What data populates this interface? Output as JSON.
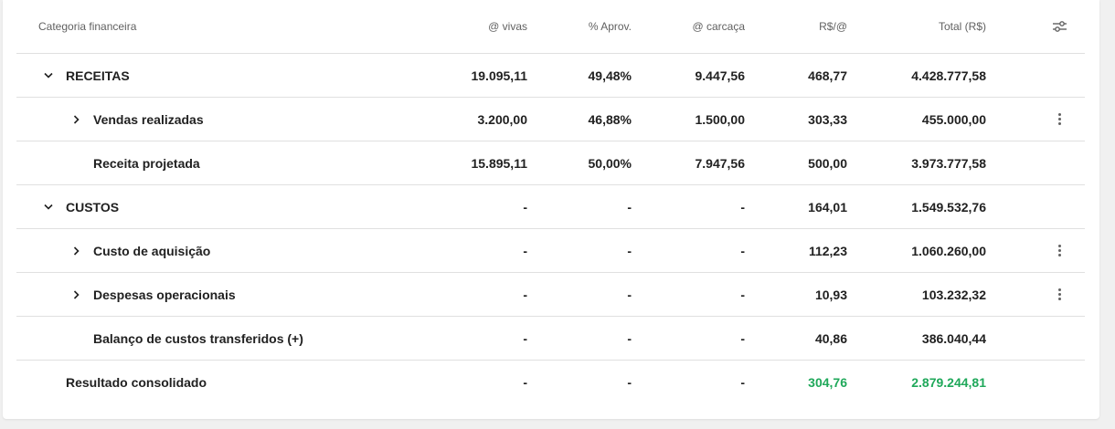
{
  "columns": {
    "categoria": "Categoria financeira",
    "vivas": "@ vivas",
    "aprov": "% Aprov.",
    "carcaca": "@ carcaça",
    "rs_arroba": "R$/@",
    "total": "Total (R$)"
  },
  "rows": [
    {
      "name": "RECEITAS",
      "vivas": "19.095,11",
      "aprov": "49,48%",
      "carcaca": "9.447,56",
      "rs_arroba": "468,77",
      "total": "4.428.777,58"
    },
    {
      "name": "Vendas realizadas",
      "vivas": "3.200,00",
      "aprov": "46,88%",
      "carcaca": "1.500,00",
      "rs_arroba": "303,33",
      "total": "455.000,00"
    },
    {
      "name": "Receita projetada",
      "vivas": "15.895,11",
      "aprov": "50,00%",
      "carcaca": "7.947,56",
      "rs_arroba": "500,00",
      "total": "3.973.777,58"
    },
    {
      "name": "CUSTOS",
      "vivas": "-",
      "aprov": "-",
      "carcaca": "-",
      "rs_arroba": "164,01",
      "total": "1.549.532,76"
    },
    {
      "name": "Custo de aquisição",
      "vivas": "-",
      "aprov": "-",
      "carcaca": "-",
      "rs_arroba": "112,23",
      "total": "1.060.260,00"
    },
    {
      "name": "Despesas operacionais",
      "vivas": "-",
      "aprov": "-",
      "carcaca": "-",
      "rs_arroba": "10,93",
      "total": "103.232,32"
    },
    {
      "name": "Balanço de custos transferidos (+)",
      "vivas": "-",
      "aprov": "-",
      "carcaca": "-",
      "rs_arroba": "40,86",
      "total": "386.040,44"
    },
    {
      "name": "Resultado consolidado",
      "vivas": "-",
      "aprov": "-",
      "carcaca": "-",
      "rs_arroba": "304,76",
      "total": "2.879.244,81"
    }
  ],
  "icons": {
    "settings": "sliders-icon",
    "expanded": "chevron-down-icon",
    "collapsed": "chevron-right-icon",
    "more": "more-vertical-icon"
  },
  "colors": {
    "positive": "#1fa85a",
    "text": "#212121",
    "muted": "#616161",
    "divider": "#e0e0e0"
  }
}
